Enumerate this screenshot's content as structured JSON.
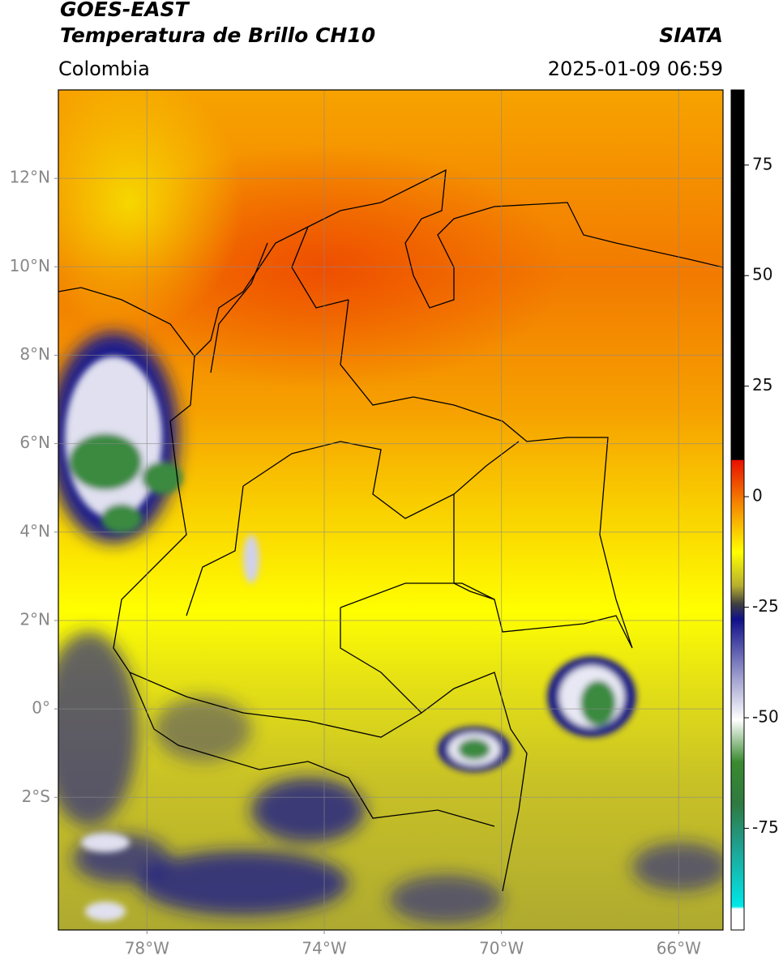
{
  "header": {
    "title": "GOES-EAST",
    "subtitle": "Temperatura de Brillo CH10",
    "region": "Colombia",
    "source": "SIATA",
    "datetime": "2025-01-09 06:59"
  },
  "map": {
    "xlim": [
      -80,
      -65
    ],
    "ylim": [
      -5,
      14
    ],
    "xticks": [
      {
        "value": -78,
        "label": "78°W"
      },
      {
        "value": -74,
        "label": "74°W"
      },
      {
        "value": -70,
        "label": "70°W"
      },
      {
        "value": -66,
        "label": "66°W"
      }
    ],
    "yticks": [
      {
        "value": 12,
        "label": "12°N"
      },
      {
        "value": 10,
        "label": "10°N"
      },
      {
        "value": 8,
        "label": "8°N"
      },
      {
        "value": 6,
        "label": "6°N"
      },
      {
        "value": 4,
        "label": "4°N"
      },
      {
        "value": 2,
        "label": "2°N"
      },
      {
        "value": 0,
        "label": "0°"
      },
      {
        "value": -2,
        "label": "2°S"
      }
    ],
    "grid": true
  },
  "colorbar": {
    "lim": [
      -98,
      92
    ],
    "ticks": [
      75,
      50,
      25,
      0,
      -25,
      -50,
      -75
    ]
  }
}
